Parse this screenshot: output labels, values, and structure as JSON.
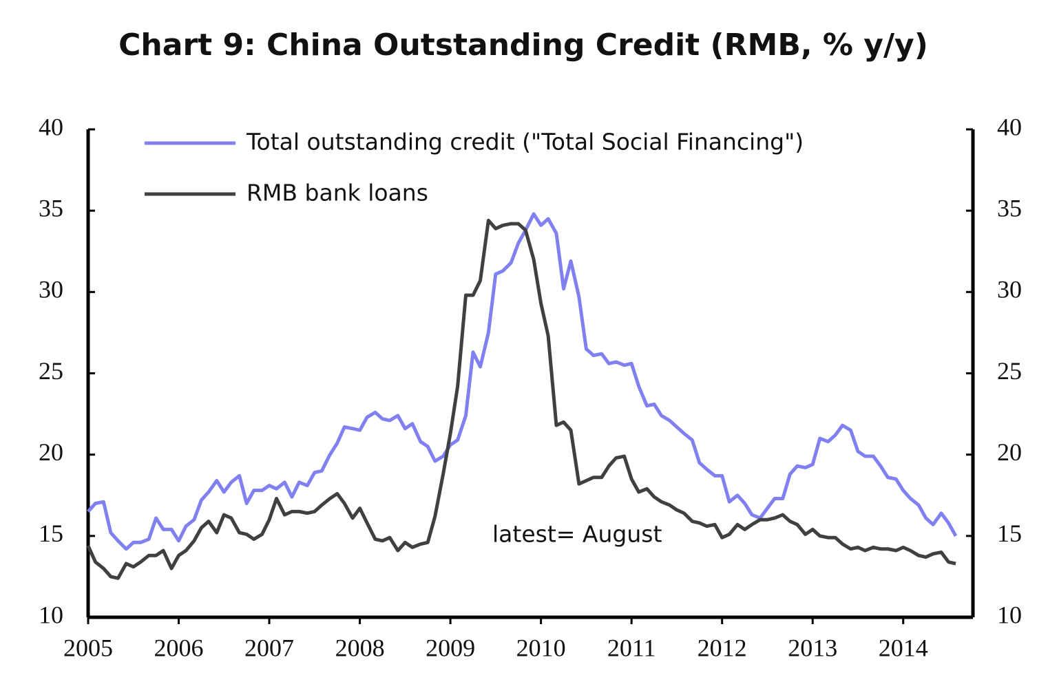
{
  "chart_data": {
    "type": "line",
    "title": "Chart 9: China Outstanding Credit (RMB, % y/y)",
    "annotation": "latest= August",
    "x": [
      2005,
      2005.08,
      2005.17,
      2005.25,
      2005.33,
      2005.42,
      2005.5,
      2005.58,
      2005.67,
      2005.75,
      2005.83,
      2005.92,
      2006,
      2006.08,
      2006.17,
      2006.25,
      2006.33,
      2006.42,
      2006.5,
      2006.58,
      2006.67,
      2006.75,
      2006.83,
      2006.92,
      2007,
      2007.08,
      2007.17,
      2007.25,
      2007.33,
      2007.42,
      2007.5,
      2007.58,
      2007.67,
      2007.75,
      2007.83,
      2007.92,
      2008,
      2008.08,
      2008.17,
      2008.25,
      2008.33,
      2008.42,
      2008.5,
      2008.58,
      2008.67,
      2008.75,
      2008.83,
      2008.92,
      2009,
      2009.08,
      2009.17,
      2009.25,
      2009.33,
      2009.42,
      2009.5,
      2009.58,
      2009.67,
      2009.75,
      2009.83,
      2009.92,
      2010,
      2010.08,
      2010.17,
      2010.25,
      2010.33,
      2010.42,
      2010.5,
      2010.58,
      2010.67,
      2010.75,
      2010.83,
      2010.92,
      2011,
      2011.08,
      2011.17,
      2011.25,
      2011.33,
      2011.42,
      2011.5,
      2011.58,
      2011.67,
      2011.75,
      2011.83,
      2011.92,
      2012,
      2012.08,
      2012.17,
      2012.25,
      2012.33,
      2012.42,
      2012.5,
      2012.58,
      2012.67,
      2012.75,
      2012.83,
      2012.92,
      2013,
      2013.08,
      2013.17,
      2013.25,
      2013.33,
      2013.42,
      2013.5,
      2013.58,
      2013.67,
      2013.75,
      2013.83,
      2013.92,
      2014,
      2014.08,
      2014.17,
      2014.25,
      2014.33,
      2014.42,
      2014.5,
      2014.58
    ],
    "series": [
      {
        "name": "Total outstanding credit (\"Total Social Financing\")",
        "color": "#8080f0",
        "values": [
          16.5,
          17.0,
          17.1,
          15.2,
          14.7,
          14.2,
          14.6,
          14.6,
          14.8,
          16.1,
          15.4,
          15.4,
          14.7,
          15.6,
          16.0,
          17.2,
          17.7,
          18.4,
          17.7,
          18.3,
          18.7,
          17.0,
          17.8,
          17.8,
          18.1,
          17.9,
          18.3,
          17.4,
          18.3,
          18.1,
          18.9,
          19.0,
          20.0,
          20.7,
          21.7,
          21.6,
          21.5,
          22.3,
          22.6,
          22.2,
          22.1,
          22.4,
          21.6,
          21.9,
          20.8,
          20.5,
          19.6,
          19.9,
          20.6,
          20.9,
          22.4,
          26.3,
          25.4,
          27.5,
          31.1,
          31.3,
          31.8,
          33.0,
          33.8,
          34.8,
          34.1,
          34.5,
          33.6,
          30.2,
          31.9,
          29.7,
          26.5,
          26.1,
          26.2,
          25.6,
          25.7,
          25.5,
          25.6,
          24.2,
          23.0,
          23.1,
          22.4,
          22.1,
          21.7,
          21.3,
          20.9,
          19.5,
          19.1,
          18.7,
          18.7,
          17.1,
          17.5,
          17.0,
          16.3,
          16.1,
          16.7,
          17.3,
          17.3,
          18.8,
          19.3,
          19.2,
          19.4,
          21.0,
          20.8,
          21.2,
          21.8,
          21.5,
          20.2,
          19.9,
          19.9,
          19.3,
          18.6,
          18.5,
          17.8,
          17.3,
          16.9,
          16.1,
          15.7,
          16.4,
          15.8,
          15.0
        ]
      },
      {
        "name": "RMB bank loans",
        "color": "#404040",
        "values": [
          14.4,
          13.4,
          13.0,
          12.5,
          12.4,
          13.3,
          13.1,
          13.4,
          13.8,
          13.8,
          14.1,
          13.0,
          13.8,
          14.1,
          14.7,
          15.5,
          15.9,
          15.2,
          16.3,
          16.1,
          15.2,
          15.1,
          14.8,
          15.1,
          16.0,
          17.3,
          16.3,
          16.5,
          16.5,
          16.4,
          16.5,
          16.9,
          17.3,
          17.6,
          17.0,
          16.1,
          16.7,
          15.8,
          14.8,
          14.7,
          14.9,
          14.1,
          14.6,
          14.3,
          14.5,
          14.6,
          16.2,
          18.8,
          21.3,
          24.2,
          29.8,
          29.8,
          30.7,
          34.4,
          33.9,
          34.1,
          34.2,
          34.2,
          33.8,
          32.0,
          29.3,
          27.3,
          21.8,
          22.0,
          21.5,
          18.2,
          18.4,
          18.6,
          18.6,
          19.3,
          19.8,
          19.9,
          18.5,
          17.7,
          17.9,
          17.4,
          17.1,
          16.9,
          16.6,
          16.4,
          15.9,
          15.8,
          15.6,
          15.7,
          14.9,
          15.1,
          15.7,
          15.4,
          15.7,
          16.0,
          16.0,
          16.1,
          16.3,
          15.9,
          15.7,
          15.1,
          15.4,
          15.0,
          14.9,
          14.9,
          14.5,
          14.2,
          14.3,
          14.1,
          14.3,
          14.2,
          14.2,
          14.1,
          14.3,
          14.1,
          13.8,
          13.7,
          13.9,
          14.0,
          13.4,
          13.3
        ]
      }
    ],
    "xlim": [
      2005,
      2014.77
    ],
    "xticks": [
      2005,
      2006,
      2007,
      2008,
      2009,
      2010,
      2011,
      2012,
      2013,
      2014
    ],
    "ylim": [
      10,
      40
    ],
    "yticks": [
      10,
      15,
      20,
      25,
      30,
      35,
      40
    ],
    "y2lim": [
      10,
      40
    ],
    "y2ticks": [
      10,
      15,
      20,
      25,
      30,
      35,
      40
    ]
  }
}
